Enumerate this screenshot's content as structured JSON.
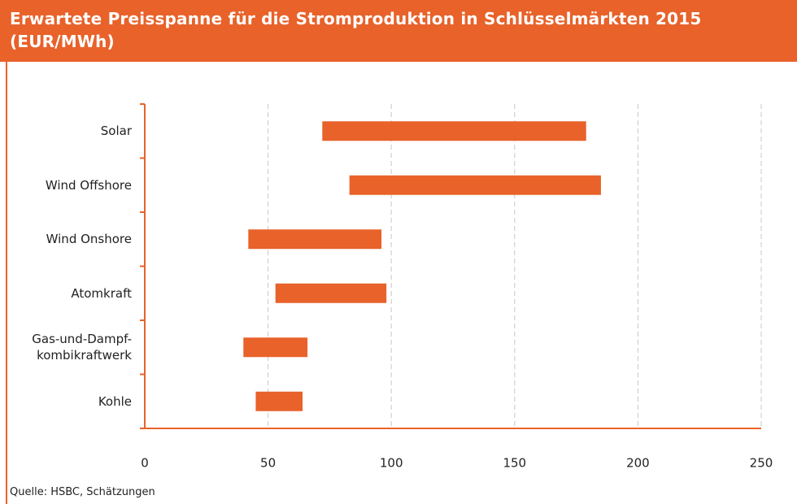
{
  "chart_data": {
    "type": "floating-bar",
    "title": "Erwartete Preisspanne für die Stromproduktion in Schlüsselmärkten 2015 (EUR/MWh)",
    "categories": [
      "Solar",
      "Wind Offshore",
      "Wind Onshore",
      "Atomkraft",
      "Gas-und-Dampf-\nkombikraftwerk",
      "Kohle"
    ],
    "values": [
      [
        72,
        179
      ],
      [
        83,
        185
      ],
      [
        42,
        96
      ],
      [
        53,
        98
      ],
      [
        40,
        66
      ],
      [
        45,
        64
      ]
    ],
    "color": "#e8622a",
    "xlim": [
      0,
      250
    ],
    "xticks": [
      0,
      50,
      100,
      150,
      200,
      250
    ],
    "grid": true,
    "source": "Quelle: HSBC, Schätzungen"
  }
}
